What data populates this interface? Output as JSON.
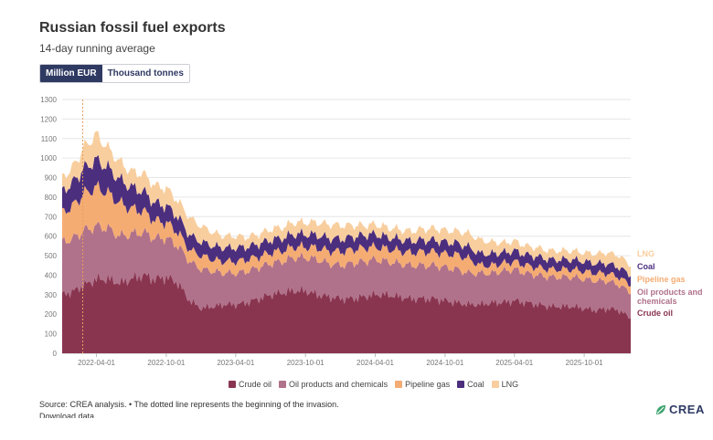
{
  "header": {
    "title": "Russian fossil fuel exports",
    "subtitle": "14-day running average"
  },
  "toggle": {
    "option_1": "Million EUR",
    "option_2": "Thousand tonnes",
    "selected": "Million EUR"
  },
  "chart_data": {
    "type": "area",
    "stacked": true,
    "title": "Russian fossil fuel exports",
    "subtitle": "14-day running average",
    "ylabel": "",
    "xlabel": "",
    "ylim": [
      0,
      1300
    ],
    "yticks": [
      0,
      100,
      200,
      300,
      400,
      500,
      600,
      700,
      800,
      900,
      1000,
      1100,
      1200,
      1300
    ],
    "xlim": [
      "2022-01-01",
      "2026-01-31"
    ],
    "xticks": [
      "2022-04-01",
      "2022-10-01",
      "2023-04-01",
      "2023-10-01",
      "2024-04-01",
      "2024-10-01",
      "2025-04-01",
      "2025-10-01"
    ],
    "invasion_marker": "2022-02-24",
    "x": [
      "2022-01-01",
      "2022-02-01",
      "2022-03-01",
      "2022-04-01",
      "2022-05-01",
      "2022-06-01",
      "2022-07-01",
      "2022-08-01",
      "2022-09-01",
      "2022-10-01",
      "2022-11-01",
      "2022-12-01",
      "2023-01-01",
      "2023-02-01",
      "2023-03-01",
      "2023-04-01",
      "2023-05-01",
      "2023-06-01",
      "2023-07-01",
      "2023-08-01",
      "2023-09-01",
      "2023-10-01",
      "2023-11-01",
      "2023-12-01",
      "2024-01-01",
      "2024-02-01",
      "2024-03-01",
      "2024-04-01",
      "2024-05-01",
      "2024-06-01",
      "2024-07-01",
      "2024-08-01",
      "2024-09-01",
      "2024-10-01",
      "2024-11-01",
      "2024-12-01",
      "2025-01-01",
      "2025-02-01",
      "2025-03-01",
      "2025-04-01",
      "2025-05-01",
      "2025-06-01",
      "2025-07-01",
      "2025-08-01",
      "2025-09-01",
      "2025-10-01",
      "2025-11-01",
      "2025-12-01",
      "2026-01-01",
      "2026-01-31"
    ],
    "series": [
      {
        "name": "Crude oil",
        "color": "#8a3550",
        "values": [
          300,
          320,
          350,
          380,
          380,
          360,
          380,
          400,
          380,
          390,
          360,
          270,
          230,
          240,
          250,
          250,
          260,
          280,
          300,
          310,
          320,
          320,
          300,
          290,
          280,
          280,
          290,
          300,
          300,
          290,
          280,
          280,
          280,
          270,
          260,
          250,
          250,
          260,
          260,
          270,
          260,
          250,
          240,
          240,
          240,
          230,
          220,
          230,
          220,
          180
        ]
      },
      {
        "name": "Oil products and chemicals",
        "color": "#b0718a",
        "values": [
          270,
          270,
          280,
          270,
          260,
          240,
          230,
          220,
          210,
          200,
          190,
          200,
          200,
          180,
          160,
          160,
          160,
          160,
          160,
          160,
          170,
          170,
          180,
          170,
          170,
          180,
          180,
          180,
          170,
          170,
          170,
          170,
          170,
          170,
          170,
          160,
          160,
          150,
          160,
          160,
          150,
          150,
          150,
          150,
          150,
          150,
          150,
          140,
          130,
          130
        ]
      },
      {
        "name": "Pipeline gas",
        "color": "#f5ac73",
        "values": [
          150,
          170,
          190,
          200,
          180,
          170,
          130,
          110,
          90,
          80,
          70,
          60,
          70,
          60,
          60,
          60,
          60,
          55,
          55,
          55,
          55,
          55,
          60,
          65,
          70,
          70,
          70,
          65,
          65,
          65,
          65,
          70,
          70,
          70,
          75,
          75,
          40,
          40,
          40,
          40,
          40,
          40,
          40,
          40,
          40,
          40,
          40,
          40,
          40,
          40
        ]
      },
      {
        "name": "Coal",
        "color": "#4b2e7e",
        "values": [
          110,
          120,
          130,
          140,
          130,
          120,
          110,
          100,
          90,
          85,
          80,
          75,
          70,
          70,
          70,
          70,
          65,
          65,
          65,
          65,
          65,
          65,
          65,
          65,
          65,
          65,
          65,
          65,
          60,
          60,
          60,
          60,
          60,
          60,
          60,
          60,
          60,
          60,
          55,
          55,
          55,
          55,
          50,
          50,
          50,
          50,
          50,
          50,
          50,
          50
        ]
      },
      {
        "name": "LNG",
        "color": "#f8ce9e",
        "values": [
          70,
          80,
          110,
          130,
          100,
          90,
          80,
          90,
          90,
          90,
          80,
          90,
          80,
          70,
          60,
          60,
          50,
          50,
          55,
          55,
          60,
          60,
          65,
          70,
          70,
          60,
          50,
          50,
          50,
          50,
          50,
          55,
          60,
          60,
          60,
          70,
          70,
          60,
          50,
          50,
          45,
          45,
          45,
          45,
          45,
          45,
          50,
          55,
          60,
          50
        ]
      }
    ],
    "end_labels": [
      "LNG",
      "Coal",
      "Pipeline gas",
      "Oil products and chemicals",
      "Crude oil"
    ],
    "legend_position": "bottom"
  },
  "legend": {
    "items": [
      "Crude oil",
      "Oil products and chemicals",
      "Pipeline gas",
      "Coal",
      "LNG"
    ]
  },
  "footer": {
    "source": "Source: CREA analysis. • The dotted line represents the beginning of the invasion.",
    "download": "Download data",
    "logo_text": "CREA"
  }
}
